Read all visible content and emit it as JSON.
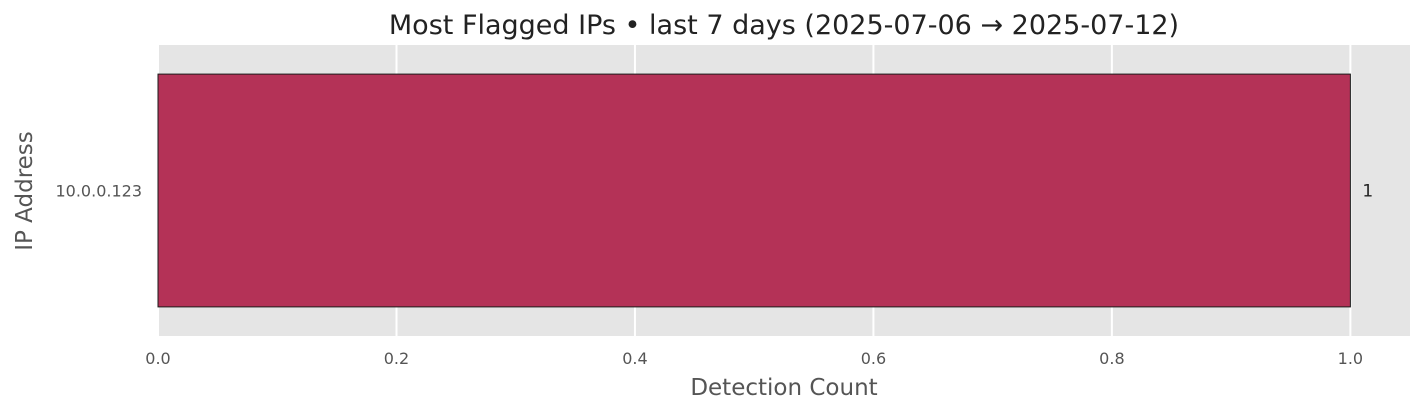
{
  "chart_data": {
    "type": "bar",
    "orientation": "horizontal",
    "title": "Most Flagged IPs • last 7 days (2025-07-06 → 2025-07-12)",
    "xlabel": "Detection Count",
    "ylabel": "IP Address",
    "categories": [
      "10.0.0.123"
    ],
    "values": [
      1
    ],
    "data_labels": [
      "1"
    ],
    "xlim": [
      0,
      1.05
    ],
    "xticks": [
      0.0,
      0.2,
      0.4,
      0.6,
      0.8,
      1.0
    ],
    "xtick_labels": [
      "0.0",
      "0.2",
      "0.4",
      "0.6",
      "0.8",
      "1.0"
    ],
    "grid": true,
    "colors": {
      "bar": "#b43257",
      "bar_edge": "#1a1a1a",
      "plot_background": "#e5e5e5",
      "grid": "#ffffff",
      "text": "#222222",
      "tick_text": "#555555"
    }
  }
}
